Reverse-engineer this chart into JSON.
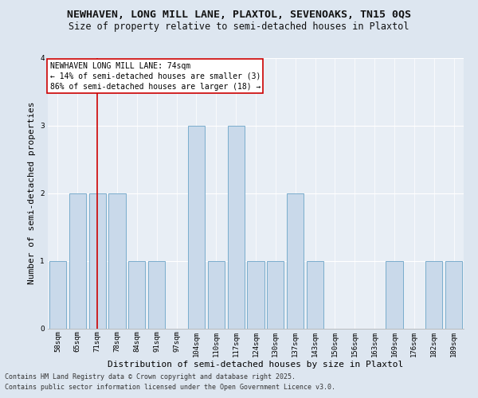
{
  "title1": "NEWHAVEN, LONG MILL LANE, PLAXTOL, SEVENOAKS, TN15 0QS",
  "title2": "Size of property relative to semi-detached houses in Plaxtol",
  "xlabel": "Distribution of semi-detached houses by size in Plaxtol",
  "ylabel": "Number of semi-detached properties",
  "categories": [
    "58sqm",
    "65sqm",
    "71sqm",
    "78sqm",
    "84sqm",
    "91sqm",
    "97sqm",
    "104sqm",
    "110sqm",
    "117sqm",
    "124sqm",
    "130sqm",
    "137sqm",
    "143sqm",
    "150sqm",
    "156sqm",
    "163sqm",
    "169sqm",
    "176sqm",
    "182sqm",
    "189sqm"
  ],
  "values": [
    1,
    2,
    2,
    2,
    1,
    1,
    0,
    3,
    1,
    3,
    1,
    1,
    2,
    1,
    0,
    0,
    0,
    1,
    0,
    1,
    1
  ],
  "bar_color": "#c9d9ea",
  "bar_edge_color": "#7aadcc",
  "highlight_bar_index": 2,
  "highlight_line_color": "#cc0000",
  "annotation_title": "NEWHAVEN LONG MILL LANE: 74sqm",
  "annotation_line1": "← 14% of semi-detached houses are smaller (3)",
  "annotation_line2": "86% of semi-detached houses are larger (18) →",
  "annotation_box_facecolor": "#ffffff",
  "annotation_box_edgecolor": "#cc0000",
  "ylim": [
    0,
    4
  ],
  "yticks": [
    0,
    1,
    2,
    3,
    4
  ],
  "footer1": "Contains HM Land Registry data © Crown copyright and database right 2025.",
  "footer2": "Contains public sector information licensed under the Open Government Licence v3.0.",
  "bg_color": "#dde6f0",
  "plot_bg_color": "#e8eef5",
  "grid_color": "#ffffff",
  "title1_fontsize": 9.5,
  "title2_fontsize": 8.5,
  "xlabel_fontsize": 8,
  "ylabel_fontsize": 8,
  "tick_fontsize": 6.5,
  "ann_fontsize": 7,
  "footer_fontsize": 6
}
